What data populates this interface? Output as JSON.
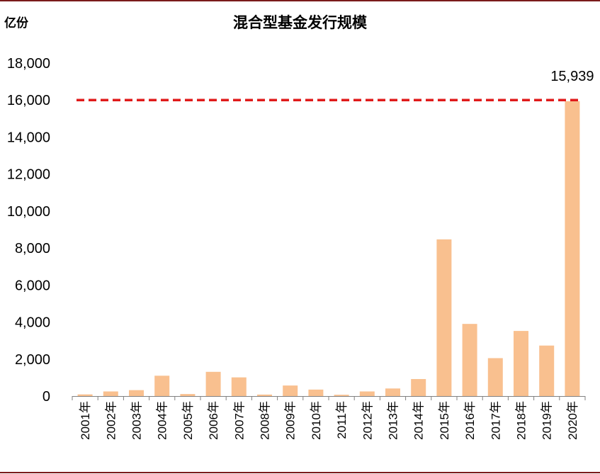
{
  "header": {
    "unit": "亿份",
    "title": "混合型基金发行规模"
  },
  "colors": {
    "bar": "#f9c08f",
    "reference_line": "#e01b1b",
    "frame": "#7a1a1a"
  },
  "chart_data": {
    "type": "bar",
    "title": "混合型基金发行规模",
    "ylabel": "亿份",
    "xlabel": "",
    "categories": [
      "2001年",
      "2002年",
      "2003年",
      "2004年",
      "2005年",
      "2006年",
      "2007年",
      "2008年",
      "2009年",
      "2010年",
      "2011年",
      "2012年",
      "2013年",
      "2014年",
      "2015年",
      "2016年",
      "2017年",
      "2018年",
      "2019年",
      "2020年"
    ],
    "values": [
      90,
      250,
      320,
      1100,
      110,
      1310,
      1010,
      80,
      570,
      350,
      70,
      250,
      410,
      920,
      8470,
      3900,
      2050,
      3520,
      2730,
      15939
    ],
    "ylim": [
      0,
      18000
    ],
    "yticks": [
      0,
      2000,
      4000,
      6000,
      8000,
      10000,
      12000,
      14000,
      16000,
      18000
    ],
    "ytick_labels": [
      "0",
      "2,000",
      "4,000",
      "6,000",
      "8,000",
      "10,000",
      "12,000",
      "14,000",
      "16,000",
      "18,000"
    ],
    "reference_line": {
      "value": 16000,
      "style": "dashed"
    },
    "annotations": [
      {
        "category": "2020年",
        "text": "15,939"
      }
    ],
    "grid": false
  }
}
